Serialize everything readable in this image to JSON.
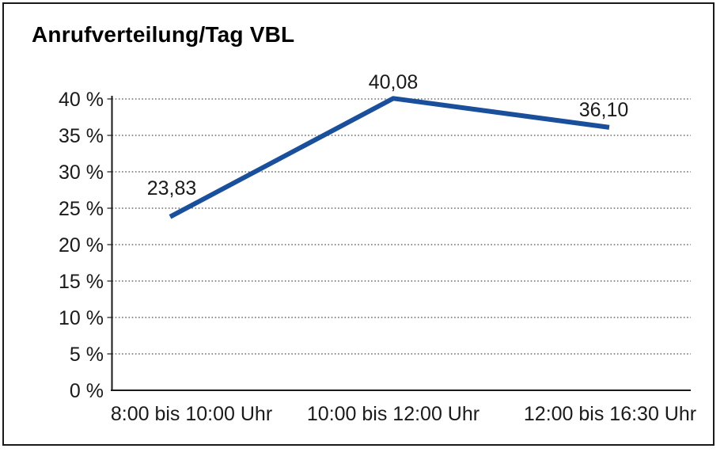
{
  "title": "Anrufverteilung/Tag VBL",
  "chart_data": {
    "type": "line",
    "title": "Anrufverteilung/Tag VBL",
    "categories": [
      "8:00 bis 10:00 Uhr",
      "10:00 bis 12:00 Uhr",
      "12:00 bis 16:30 Uhr"
    ],
    "values": [
      23.83,
      40.08,
      36.1
    ],
    "point_labels": [
      "23,83",
      "40,08",
      "36,10"
    ],
    "xlabel": "",
    "ylabel": "",
    "ylim": [
      0,
      40
    ],
    "ytick_step": 5,
    "ytick_labels_top_to_bottom": [
      "40 %",
      "35 %",
      "30 %",
      "25 %",
      "20 %",
      "15 %",
      "10 %",
      "5 %",
      "0 %"
    ],
    "grid": "horizontal-dotted",
    "legend_position": "none",
    "line_color": "#1A4F9C",
    "axis_color": "#1a1a1a",
    "grid_color": "#4d4d4d"
  }
}
